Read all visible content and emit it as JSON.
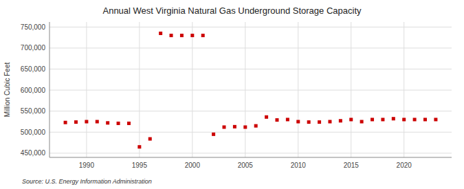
{
  "chart_data": {
    "type": "scatter",
    "title": "Annual West Virginia Natural Gas Underground Storage Capacity",
    "ylabel": "Million Cubic Feet",
    "source": "Source: U.S. Energy Information Administration",
    "x": [
      1988,
      1989,
      1990,
      1991,
      1992,
      1993,
      1994,
      1995,
      1996,
      1997,
      1998,
      1999,
      2000,
      2001,
      2002,
      2003,
      2004,
      2005,
      2006,
      2007,
      2008,
      2009,
      2010,
      2011,
      2012,
      2013,
      2014,
      2015,
      2016,
      2017,
      2018,
      2019,
      2020,
      2021,
      2022,
      2023
    ],
    "values": [
      523000,
      524000,
      525000,
      525000,
      522000,
      521000,
      521000,
      465000,
      484000,
      735000,
      730000,
      730000,
      730000,
      730000,
      495000,
      512000,
      513000,
      512000,
      515000,
      536000,
      529000,
      530000,
      525000,
      524000,
      524000,
      525000,
      527000,
      530000,
      525000,
      530000,
      530000,
      532000,
      530000,
      530000,
      530000,
      530000
    ],
    "color": "#cc0000",
    "marker": "square",
    "xlim": [
      1986.5,
      2024.5
    ],
    "xticks": [
      1990,
      1995,
      2000,
      2005,
      2010,
      2015,
      2020
    ],
    "ylim": [
      440000,
      762000
    ],
    "yticks": [
      {
        "value": 450000,
        "label": "450,000"
      },
      {
        "value": 500000,
        "label": "500,000"
      },
      {
        "value": 550000,
        "label": "550,000"
      },
      {
        "value": 600000,
        "label": "600,000"
      },
      {
        "value": 650000,
        "label": "650,000"
      },
      {
        "value": 700000,
        "label": "700,000"
      },
      {
        "value": 750000,
        "label": "750,000"
      }
    ],
    "grid": true
  }
}
